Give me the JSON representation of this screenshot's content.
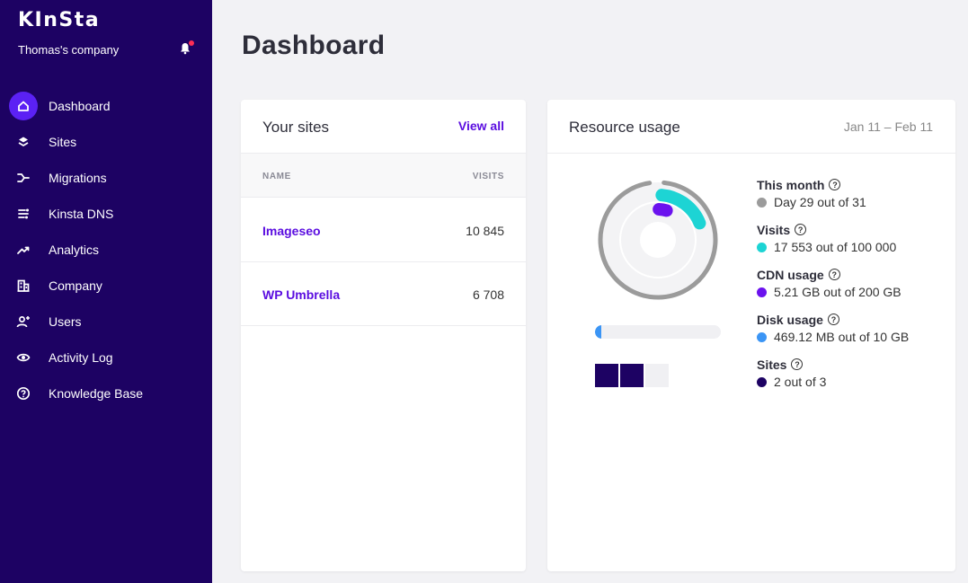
{
  "brand": {
    "logo": "KInSta",
    "company": "Thomas's company"
  },
  "nav": [
    {
      "label": "Dashboard",
      "icon": "home-icon",
      "active": true
    },
    {
      "label": "Sites",
      "icon": "layers-icon"
    },
    {
      "label": "Migrations",
      "icon": "migrate-icon"
    },
    {
      "label": "Kinsta DNS",
      "icon": "dns-icon"
    },
    {
      "label": "Analytics",
      "icon": "trend-icon"
    },
    {
      "label": "Company",
      "icon": "building-icon"
    },
    {
      "label": "Users",
      "icon": "user-plus-icon"
    },
    {
      "label": "Activity Log",
      "icon": "eye-icon"
    },
    {
      "label": "Knowledge Base",
      "icon": "help-circle-icon"
    }
  ],
  "page": {
    "title": "Dashboard"
  },
  "sites_card": {
    "title": "Your sites",
    "view_all": "View all",
    "columns": {
      "name": "NAME",
      "visits": "VISITS"
    },
    "rows": [
      {
        "name": "Imageseo",
        "visits": "10 845"
      },
      {
        "name": "WP Umbrella",
        "visits": "6 708"
      }
    ]
  },
  "resource_card": {
    "title": "Resource usage",
    "date_range": "Jan 11 – Feb 11",
    "metrics": [
      {
        "title": "This month",
        "value": "Day 29 out of 31",
        "color": "#9b9b9b",
        "fraction": 0.935
      },
      {
        "title": "Visits",
        "value": "17 553 out of 100 000",
        "color": "#1dd4d4",
        "fraction": 0.1755
      },
      {
        "title": "CDN usage",
        "value": "5.21 GB out of 200 GB",
        "color": "#6b12ee",
        "fraction": 0.026
      },
      {
        "title": "Disk usage",
        "value": "469.12 MB out of 10 GB",
        "color": "#3b95f5",
        "fraction": 0.0469
      },
      {
        "title": "Sites",
        "value": "2 out of 3",
        "color": "#1d0263",
        "used": 2,
        "total": 3
      }
    ]
  },
  "colors": {
    "sidebar": "#1d0263",
    "accent": "#5b21f4",
    "link": "#5b0ee0"
  }
}
